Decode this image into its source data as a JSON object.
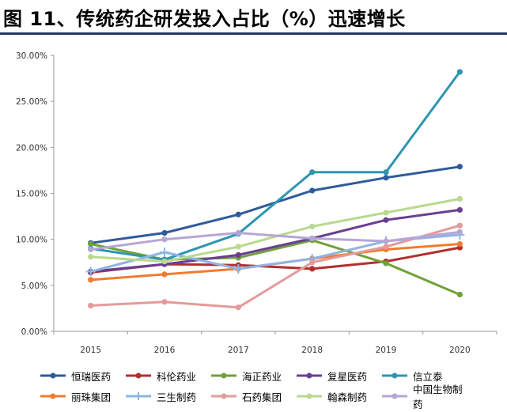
{
  "header": {
    "title": "图 11、传统药企研发投入占比（%）迅速增长"
  },
  "chart_data": {
    "type": "line",
    "title": "图 11、传统药企研发投入占比（%）迅速增长",
    "xlabel": "",
    "ylabel": "",
    "categories": [
      "2015",
      "2016",
      "2017",
      "2018",
      "2019",
      "2020"
    ],
    "ylim": [
      0,
      30
    ],
    "yticks": [
      "0.00%",
      "5.00%",
      "10.00%",
      "15.00%",
      "20.00%",
      "25.00%",
      "30.00%"
    ],
    "ytick_values": [
      0,
      5,
      10,
      15,
      20,
      25,
      30
    ],
    "grid": false,
    "legend_position": "bottom",
    "series": [
      {
        "name": "恒瑞医药",
        "color": "#2f5b9a",
        "marker": "circle",
        "values": [
          9.6,
          10.7,
          12.7,
          15.3,
          16.7,
          17.9
        ]
      },
      {
        "name": "科伦药业",
        "color": "#b22f2f",
        "marker": "circle",
        "values": [
          6.4,
          7.3,
          7.2,
          6.8,
          7.6,
          9.1
        ]
      },
      {
        "name": "海正药业",
        "color": "#71a037",
        "marker": "circle",
        "values": [
          9.5,
          7.8,
          8.0,
          9.9,
          7.4,
          4.0
        ]
      },
      {
        "name": "复星医药",
        "color": "#6a3f91",
        "marker": "circle",
        "values": [
          6.5,
          7.3,
          8.3,
          10.1,
          12.1,
          13.2
        ]
      },
      {
        "name": "信立泰",
        "color": "#2e95b0",
        "marker": "circle",
        "values": [
          9.0,
          7.8,
          10.6,
          17.3,
          17.3,
          28.2
        ]
      },
      {
        "name": "丽珠集团",
        "color": "#ed7d31",
        "marker": "circle",
        "values": [
          5.6,
          6.2,
          6.8,
          7.9,
          8.9,
          9.5
        ]
      },
      {
        "name": "三生制药",
        "color": "#8eb4e3",
        "marker": "plus",
        "values": [
          6.5,
          8.6,
          6.8,
          7.9,
          9.8,
          10.5
        ]
      },
      {
        "name": "石药集团",
        "color": "#e59a9a",
        "marker": "circle",
        "values": [
          2.8,
          3.2,
          2.6,
          7.5,
          9.2,
          11.5
        ]
      },
      {
        "name": "翰森制药",
        "color": "#b9d98f",
        "marker": "circle",
        "values": [
          8.1,
          7.6,
          9.2,
          11.4,
          12.9,
          14.4
        ]
      },
      {
        "name": "中国生物制药",
        "color": "#b4a7d6",
        "marker": "circle",
        "values": [
          8.9,
          10.0,
          10.7,
          10.1,
          9.8,
          10.8
        ]
      }
    ]
  }
}
